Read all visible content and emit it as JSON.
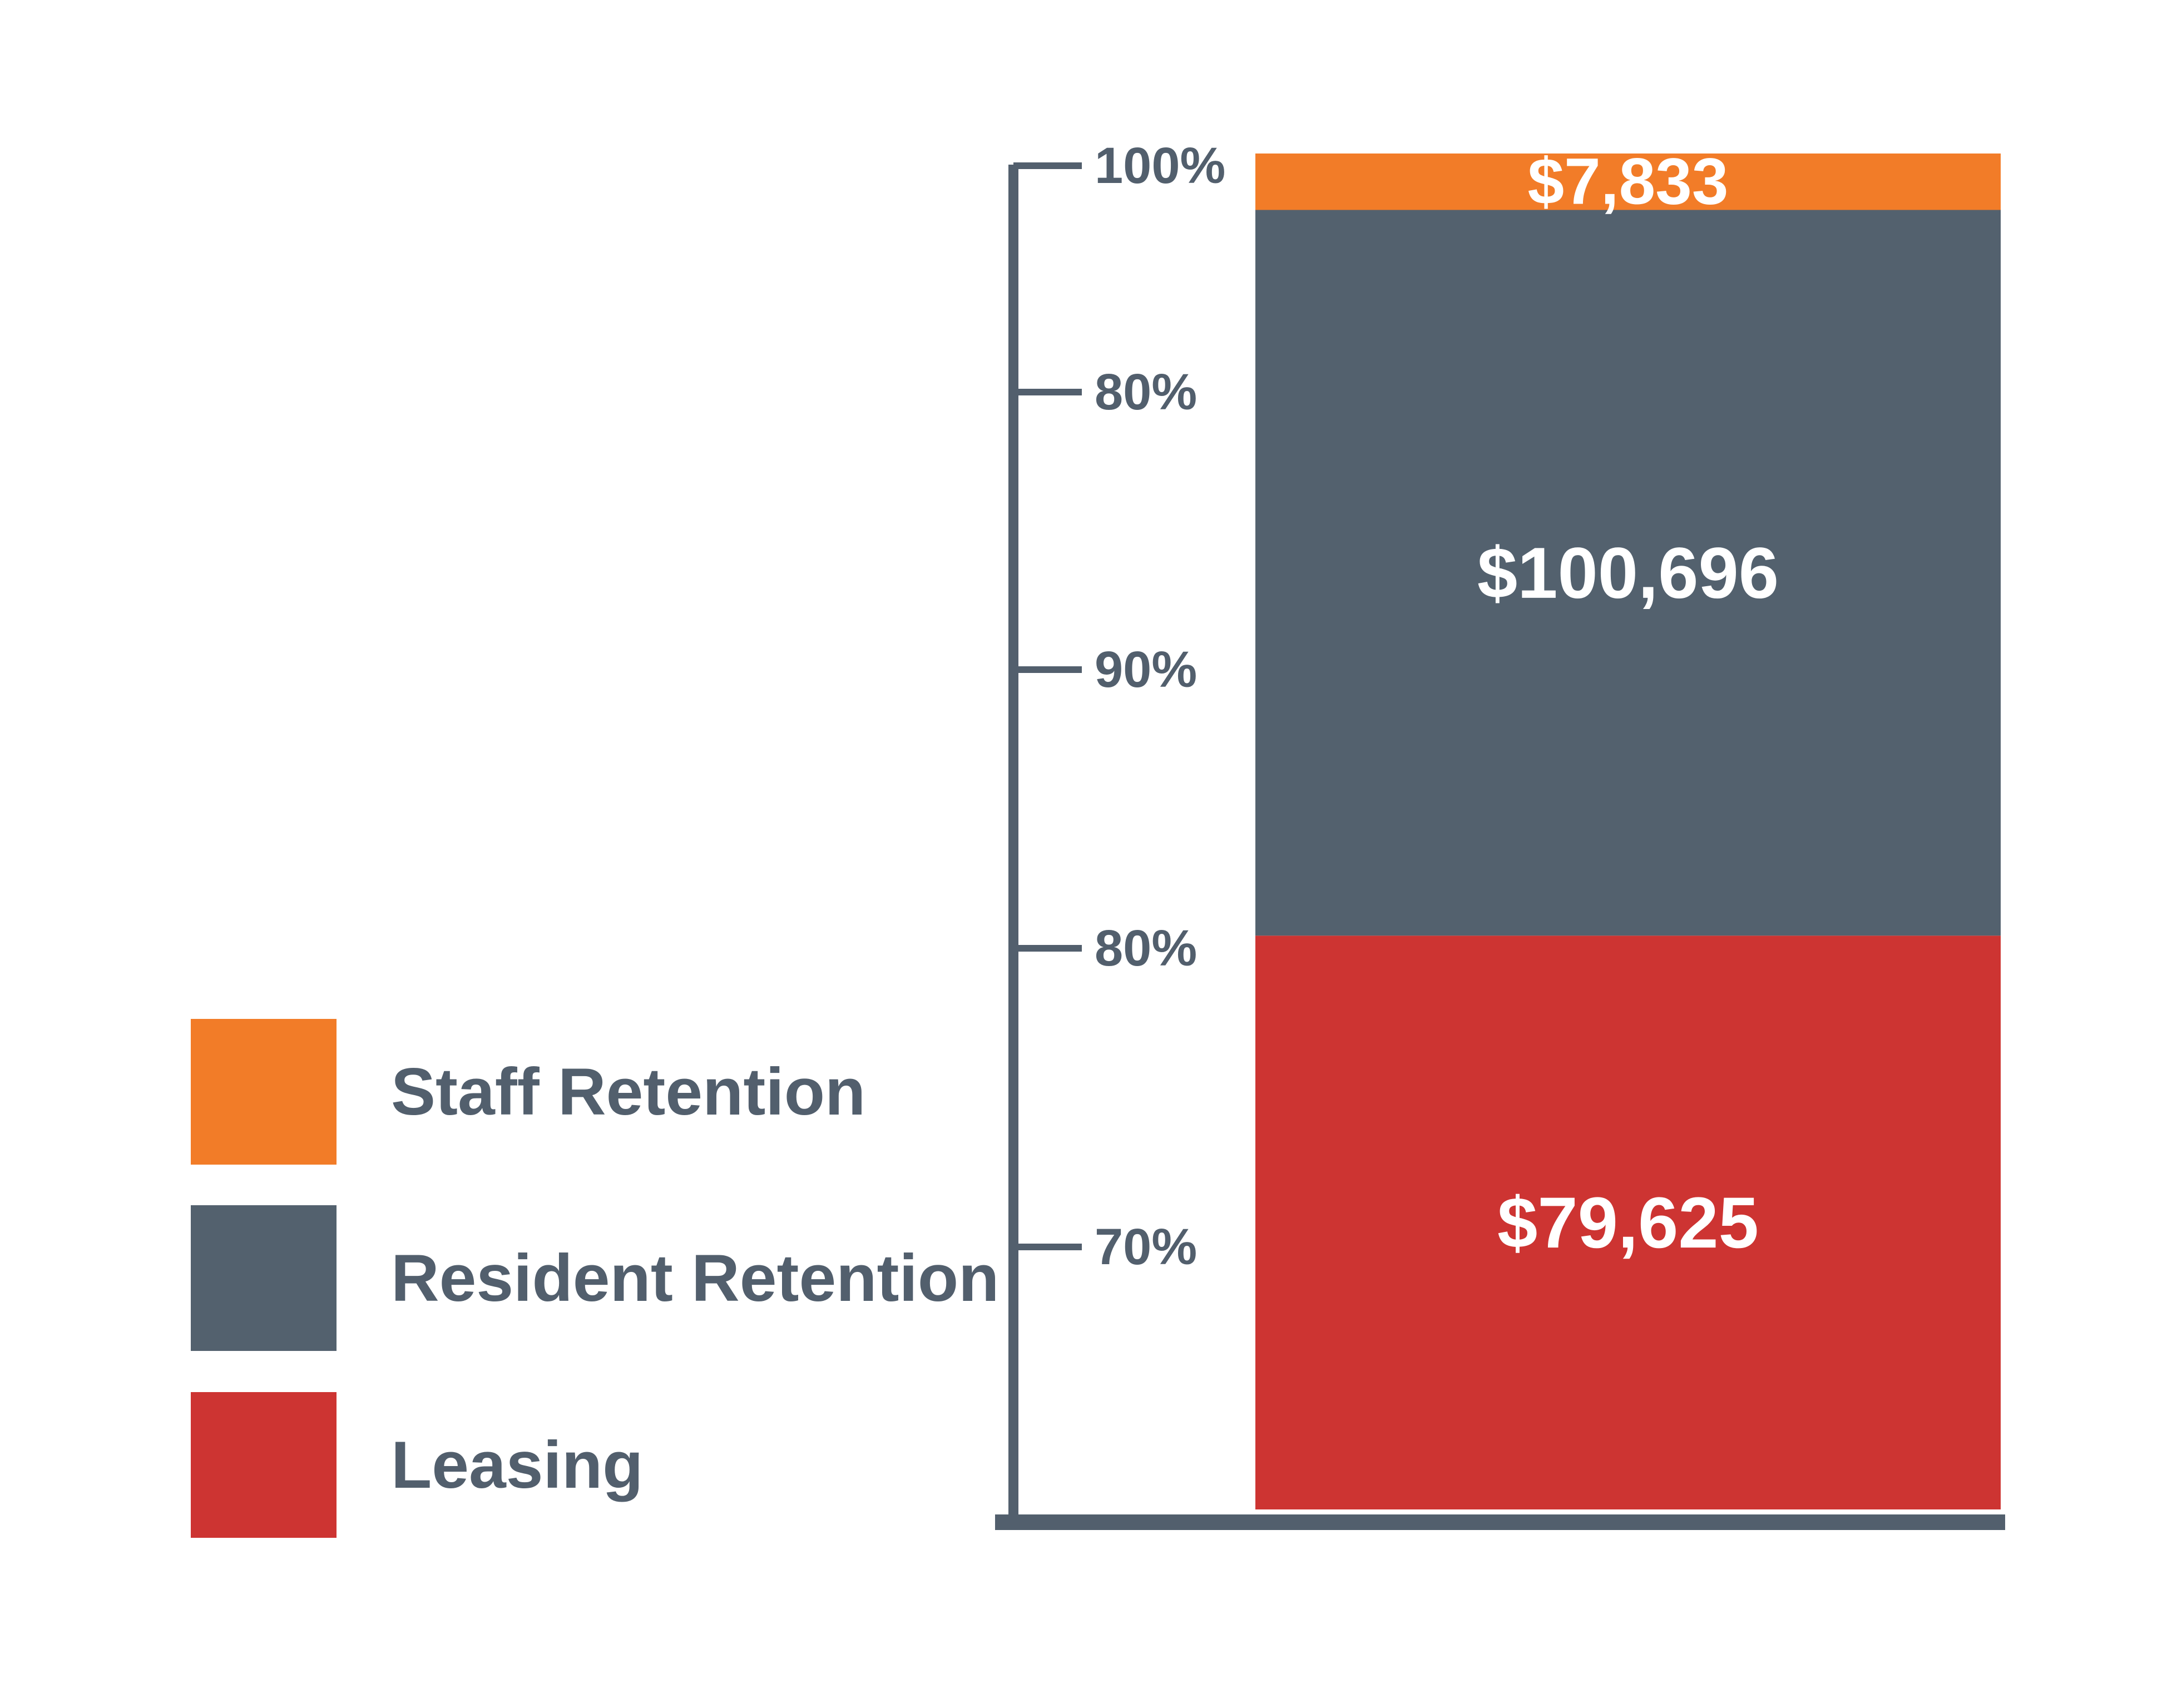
{
  "chart_data": {
    "type": "bar",
    "stacked": true,
    "axis_ticks": [
      "100%",
      "80%",
      "90%",
      "80%",
      "70%"
    ],
    "segments": [
      {
        "name": "Leasing",
        "value": 79625,
        "label": "$79,625",
        "color": "#cd3432"
      },
      {
        "name": "Resident Retention",
        "value": 100696,
        "label": "$100,696",
        "color": "#53616e"
      },
      {
        "name": "Staff Retention",
        "value": 7833,
        "label": "$7,833",
        "color": "#f27c28"
      }
    ],
    "legend": [
      {
        "name": "Staff Retention",
        "color": "#f27c28"
      },
      {
        "name": "Resident Retention",
        "color": "#53616e"
      },
      {
        "name": "Leasing",
        "color": "#cd3432"
      }
    ],
    "legend_position": "left",
    "grid": false
  },
  "colors": {
    "axis": "#525f6d",
    "background": "#ffffff"
  }
}
